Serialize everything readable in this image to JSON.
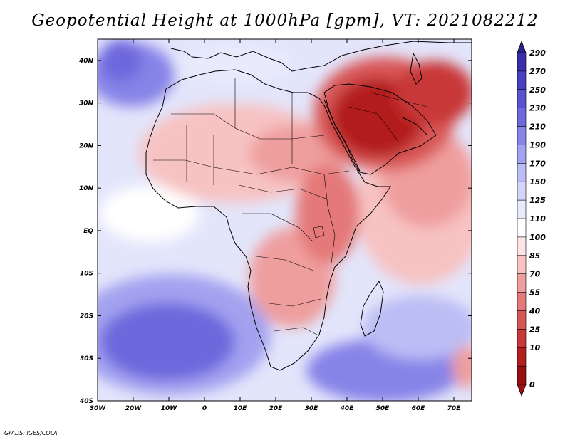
{
  "title": "Geopotential Height at 1000hPa [gpm], VT: 2021082212",
  "credit": "GrADS: IGES/COLA",
  "map": {
    "lat_labels": [
      "40N",
      "30N",
      "20N",
      "10N",
      "EQ",
      "10S",
      "20S",
      "30S",
      "40S"
    ],
    "lon_labels": [
      "30W",
      "20W",
      "10W",
      "0",
      "10E",
      "20E",
      "30E",
      "40E",
      "50E",
      "60E",
      "70E"
    ],
    "lat_range": [
      -40,
      45
    ],
    "lon_range": [
      -30,
      75
    ]
  },
  "colorbar": {
    "levels": [
      "290",
      "270",
      "250",
      "230",
      "210",
      "190",
      "170",
      "150",
      "125",
      "110",
      "100",
      "85",
      "70",
      "55",
      "40",
      "25",
      "10",
      "0"
    ],
    "colors": [
      "#3a2ea8",
      "#4a3fc0",
      "#5b52d0",
      "#6e68dd",
      "#8784e8",
      "#a3a2f0",
      "#bcbdf5",
      "#d3d5f9",
      "#e9ebfc",
      "#ffffff",
      "#fde3e3",
      "#f7c2c2",
      "#ef9e9e",
      "#e57878",
      "#d85656",
      "#c93838",
      "#b31f1f",
      "#951010"
    ]
  },
  "chart_data": {
    "type": "heatmap",
    "title": "Geopotential Height at 1000hPa [gpm], VT: 2021082212",
    "variable": "Geopotential Height at 1000hPa",
    "units": "gpm",
    "valid_time": "2021082212",
    "colorbar_levels": [
      0,
      10,
      25,
      40,
      55,
      70,
      85,
      100,
      110,
      125,
      150,
      170,
      190,
      210,
      230,
      250,
      270,
      290
    ],
    "x_ticks": [
      "30W",
      "20W",
      "10W",
      "0",
      "10E",
      "20E",
      "30E",
      "40E",
      "50E",
      "60E",
      "70E"
    ],
    "y_ticks": [
      "40N",
      "30N",
      "20N",
      "10N",
      "EQ",
      "10S",
      "20S",
      "30S",
      "40S"
    ]
  }
}
